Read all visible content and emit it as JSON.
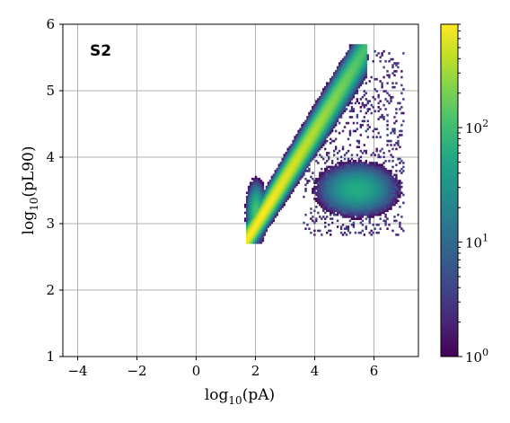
{
  "chart_data": {
    "type": "heatmap",
    "annotation": "S2",
    "xlabel": "log10(pA)",
    "ylabel": "log10(pL90)",
    "xlim": [
      -4.5,
      7.5
    ],
    "ylim": [
      1,
      6
    ],
    "xticks": [
      -4,
      -2,
      0,
      2,
      4,
      6
    ],
    "yticks": [
      1,
      2,
      3,
      4,
      5,
      6
    ],
    "grid": true,
    "colorbar": {
      "scale": "log",
      "colormap": "viridis",
      "range": [
        1,
        800
      ],
      "ticks": [
        1,
        10,
        100
      ],
      "tick_labels": [
        "10^0",
        "10^1",
        "10^2"
      ]
    },
    "regions": [
      {
        "name": "main-band",
        "from": [
          1.9,
          2.9
        ],
        "to": [
          5.6,
          5.55
        ],
        "peak_density": 800
      },
      {
        "name": "lower-cluster",
        "center": [
          5.4,
          3.5
        ],
        "extent_x": [
          4.4,
          6.9
        ],
        "extent_y": [
          3.05,
          3.9
        ],
        "peak_density": 60
      },
      {
        "name": "sparse-scatter",
        "extent_x": [
          3.5,
          7.0
        ],
        "extent_y": [
          2.8,
          5.6
        ],
        "peak_density": 3
      }
    ]
  }
}
